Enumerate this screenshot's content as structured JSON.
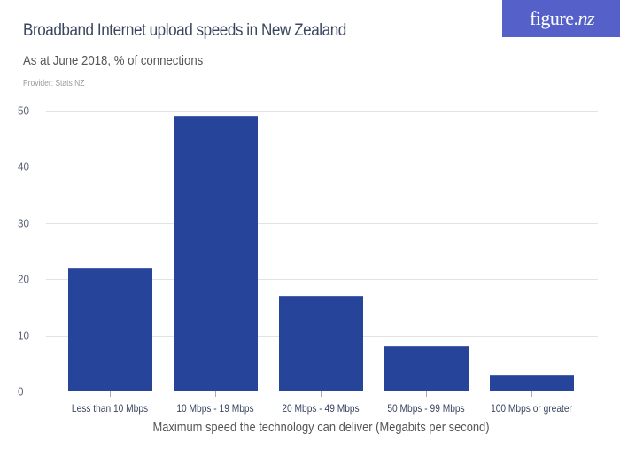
{
  "header": {
    "title": "Broadband Internet upload speeds in New Zealand",
    "subtitle": "As at June 2018, % of connections",
    "provider": "Provider: Stats NZ",
    "logo_main": "figure.",
    "logo_suffix": "nz"
  },
  "colors": {
    "bar": "#27449b",
    "logo_bg": "#5660c9",
    "title": "#3a4660"
  },
  "axis": {
    "y_ticks": [
      "0",
      "10",
      "20",
      "30",
      "40",
      "50"
    ],
    "x_title": "Maximum speed the technology can deliver (Megabits per second)"
  },
  "chart_data": {
    "type": "bar",
    "title": "Broadband Internet upload speeds in New Zealand",
    "subtitle": "As at June 2018, % of connections",
    "categories": [
      "Less than 10 Mbps",
      "10 Mbps - 19 Mbps",
      "20 Mbps - 49 Mbps",
      "50 Mbps - 99 Mbps",
      "100 Mbps or greater"
    ],
    "values": [
      22,
      49,
      17,
      8,
      3
    ],
    "xlabel": "Maximum speed the technology can deliver (Megabits per second)",
    "ylabel": "",
    "ylim": [
      0,
      50
    ],
    "yticks": [
      0,
      10,
      20,
      30,
      40,
      50
    ],
    "grid": true,
    "legend": null
  }
}
